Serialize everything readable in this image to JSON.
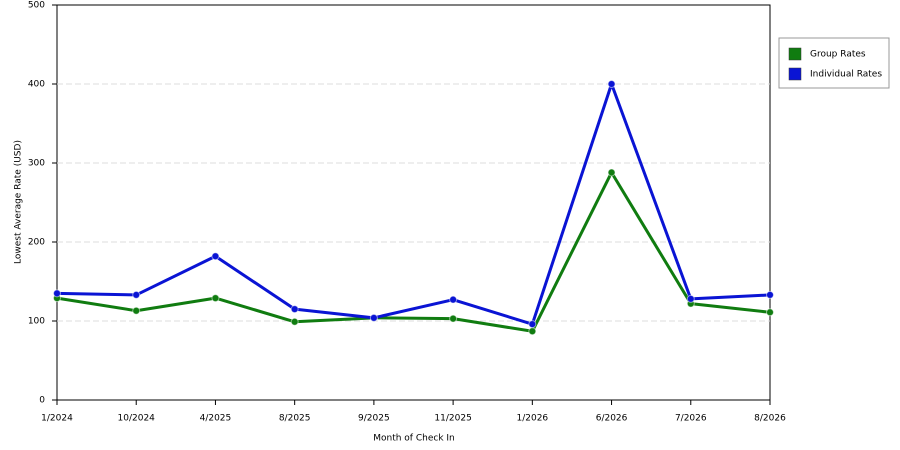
{
  "chart_data": {
    "type": "line",
    "x_label": "Month of Check In",
    "y_label": "Lowest Average Rate (USD)",
    "categories": [
      "1/2024",
      "10/2024",
      "4/2025",
      "8/2025",
      "9/2025",
      "11/2025",
      "1/2026",
      "6/2026",
      "7/2026",
      "8/2026"
    ],
    "series": [
      {
        "name": "Group Rates",
        "color": "#107c10",
        "values": [
          129,
          113,
          129,
          99,
          104,
          103,
          87,
          288,
          122,
          111
        ]
      },
      {
        "name": "Individual Rates",
        "color": "#0a14d4",
        "values": [
          135,
          133,
          182,
          115,
          104,
          127,
          96,
          400,
          128,
          133
        ]
      }
    ],
    "ylim": [
      0,
      500
    ],
    "yticks": [
      0,
      100,
      200,
      300,
      400,
      500
    ],
    "grid": true
  }
}
